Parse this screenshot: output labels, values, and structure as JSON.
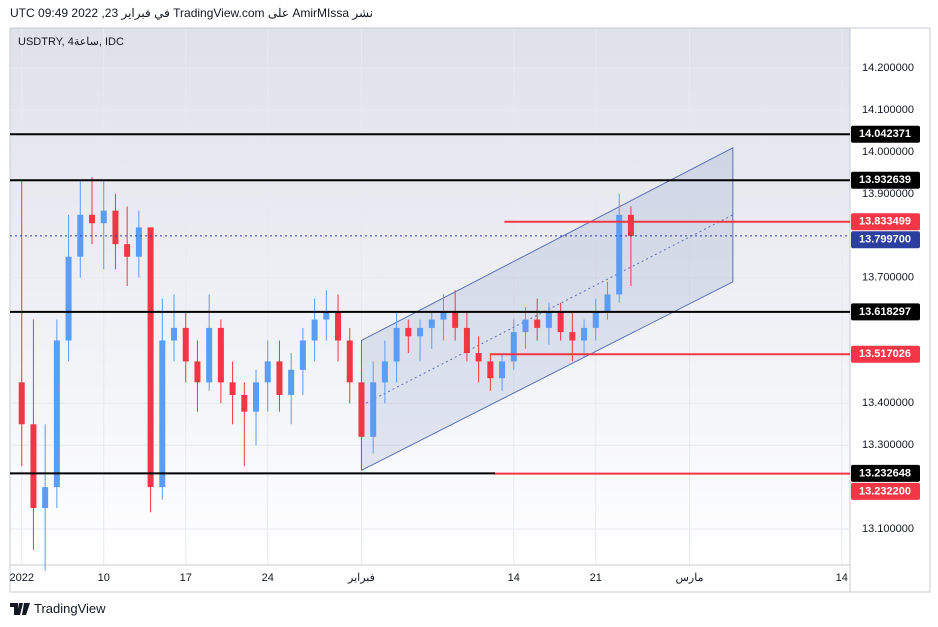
{
  "header": {
    "published": "نشر AmirMIssa على TradingView.com في فبراير 23, 2022 09:49 UTC"
  },
  "chart_data": {
    "type": "candlestick",
    "symbol_label": "USDTRY, 4ساعة, IDC",
    "x": [
      3,
      4,
      5,
      6,
      7,
      8,
      9,
      10,
      11,
      12,
      13,
      14,
      15,
      16,
      17,
      18,
      19,
      20,
      21,
      22,
      23,
      24,
      25,
      26,
      27,
      28,
      29,
      30,
      31,
      32,
      33,
      34,
      35,
      36,
      37,
      38,
      39,
      40,
      41,
      42,
      43,
      44,
      45,
      46,
      47,
      48,
      49,
      50,
      51,
      52,
      53,
      54,
      55
    ],
    "open": [
      13.45,
      13.35,
      13.15,
      13.2,
      13.55,
      13.75,
      13.85,
      13.83,
      13.86,
      13.78,
      13.75,
      13.82,
      13.2,
      13.55,
      13.58,
      13.5,
      13.45,
      13.58,
      13.45,
      13.42,
      13.38,
      13.45,
      13.5,
      13.42,
      13.48,
      13.55,
      13.6,
      13.62,
      13.55,
      13.45,
      13.32,
      13.45,
      13.5,
      13.58,
      13.56,
      13.58,
      13.6,
      13.62,
      13.58,
      13.52,
      13.5,
      13.46,
      13.5,
      13.57,
      13.6,
      13.58,
      13.62,
      13.57,
      13.55,
      13.58,
      13.62,
      13.66,
      13.85
    ],
    "high": [
      13.93,
      13.6,
      13.35,
      13.6,
      13.85,
      13.93,
      13.94,
      13.93,
      13.9,
      13.87,
      13.86,
      13.82,
      13.65,
      13.66,
      13.62,
      13.55,
      13.66,
      13.6,
      13.5,
      13.45,
      13.48,
      13.55,
      13.55,
      13.52,
      13.58,
      13.65,
      13.67,
      13.66,
      13.58,
      13.48,
      13.5,
      13.55,
      13.62,
      13.6,
      13.6,
      13.62,
      13.66,
      13.67,
      13.62,
      13.56,
      13.52,
      13.52,
      13.6,
      13.63,
      13.65,
      13.64,
      13.64,
      13.62,
      13.6,
      13.65,
      13.69,
      13.9,
      13.87
    ],
    "low": [
      13.25,
      13.05,
      13.0,
      13.15,
      13.5,
      13.7,
      13.78,
      13.72,
      13.72,
      13.68,
      13.7,
      13.14,
      13.17,
      13.5,
      13.45,
      13.38,
      13.43,
      13.4,
      13.35,
      13.25,
      13.3,
      13.38,
      13.38,
      13.35,
      13.42,
      13.5,
      13.55,
      13.5,
      13.4,
      13.24,
      13.28,
      13.4,
      13.45,
      13.52,
      13.5,
      13.53,
      13.55,
      13.55,
      13.5,
      13.45,
      13.43,
      13.43,
      13.48,
      13.53,
      13.55,
      13.54,
      13.55,
      13.5,
      13.51,
      13.55,
      13.6,
      13.64,
      13.68
    ],
    "close": [
      13.35,
      13.15,
      13.2,
      13.55,
      13.75,
      13.85,
      13.83,
      13.86,
      13.78,
      13.75,
      13.82,
      13.2,
      13.55,
      13.58,
      13.5,
      13.45,
      13.58,
      13.45,
      13.42,
      13.38,
      13.45,
      13.5,
      13.42,
      13.48,
      13.55,
      13.6,
      13.62,
      13.55,
      13.45,
      13.32,
      13.45,
      13.5,
      13.58,
      13.56,
      13.58,
      13.6,
      13.62,
      13.58,
      13.52,
      13.5,
      13.46,
      13.5,
      13.57,
      13.6,
      13.58,
      13.62,
      13.57,
      13.55,
      13.58,
      13.62,
      13.66,
      13.85,
      13.7997
    ],
    "up_color": "#5b9cf6",
    "down_color": "#f23645",
    "xlim": [
      2,
      73.7
    ],
    "ylim": [
      13.014,
      14.296
    ],
    "xticks": [
      {
        "value": 3,
        "label": "2022"
      },
      10,
      17,
      24,
      {
        "value": 32,
        "label": "فبراير"
      },
      {
        "value": 45,
        "label": "14"
      },
      {
        "value": 52,
        "label": "21"
      },
      {
        "value": 60,
        "label": "مارس"
      },
      {
        "value": 73,
        "label": "14"
      }
    ],
    "yticks": [
      {
        "value": 14.2,
        "label": "14.200000"
      },
      {
        "value": 14.1,
        "label": "14.100000"
      },
      {
        "value": 14.0,
        "label": "14.000000"
      },
      {
        "value": 13.9,
        "label": "13.900000"
      },
      {
        "value": 13.7,
        "label": "13.700000"
      },
      {
        "value": 13.4,
        "label": "13.400000"
      },
      {
        "value": 13.3,
        "label": "13.300000"
      },
      {
        "value": 13.1,
        "label": "13.100000"
      }
    ],
    "grid": true,
    "channel": {
      "x": [
        32,
        63.7
      ],
      "upper": [
        13.55,
        14.01
      ],
      "lower": [
        13.24,
        13.69
      ],
      "color": "#5a6fb4"
    },
    "levels": [
      {
        "value": 14.042371,
        "color": "#000000"
      },
      {
        "value": 13.932639,
        "color": "#000000"
      },
      {
        "value": 13.833499,
        "color": "#f23645",
        "from": 44.2
      },
      {
        "value": {
          "value": 13.7997,
          "label": "13.799700"
        },
        "color": "#2a3f9e",
        "style": "dotted"
      },
      {
        "value": 13.618297,
        "color": "#000000"
      },
      {
        "value": 13.517026,
        "color": "#f23645",
        "from": 43.0
      },
      {
        "value": 13.232648,
        "color": "#000000",
        "to": 43.4
      },
      {
        "value": {
          "value": 13.2322,
          "label": "13.232200"
        },
        "color": "#f23645",
        "from": 43.4
      }
    ]
  },
  "footer": {
    "brand": "TradingView"
  }
}
